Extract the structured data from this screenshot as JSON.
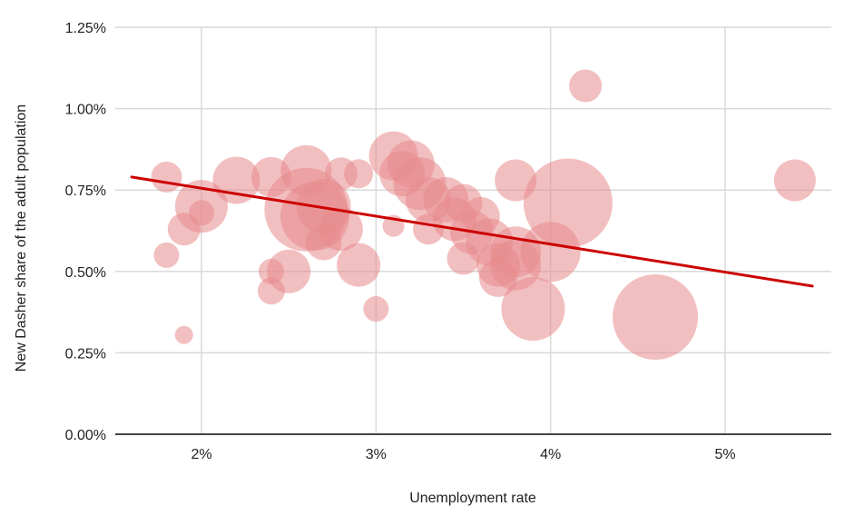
{
  "chart_data": {
    "type": "scatter",
    "subtype": "bubble",
    "title": "",
    "xlabel": "Unemployment rate",
    "ylabel": "New Dasher share of the adult population",
    "xlim": [
      1.47,
      5.6
    ],
    "ylim": [
      0,
      1.25
    ],
    "x_ticks": [
      2,
      3,
      4,
      5
    ],
    "x_tick_labels": [
      "2%",
      "3%",
      "4%",
      "5%"
    ],
    "y_ticks": [
      0,
      0.25,
      0.5,
      0.75,
      1.0,
      1.25
    ],
    "y_tick_labels": [
      "0.00%",
      "0.25%",
      "0.50%",
      "0.75%",
      "1.00%",
      "1.25%"
    ],
    "grid": true,
    "legend": "none",
    "colors": {
      "bubble": "#e88a8c",
      "bubble_opacity": 0.55,
      "trendline": "#cc0000",
      "grid": "#d9d9d9",
      "axis": "#444444"
    },
    "points": [
      {
        "x": 1.8,
        "y": 0.79,
        "size": 17
      },
      {
        "x": 1.8,
        "y": 0.55,
        "size": 14
      },
      {
        "x": 1.9,
        "y": 0.63,
        "size": 18
      },
      {
        "x": 1.9,
        "y": 0.305,
        "size": 10
      },
      {
        "x": 2.0,
        "y": 0.7,
        "size": 29
      },
      {
        "x": 2.0,
        "y": 0.68,
        "size": 14
      },
      {
        "x": 2.2,
        "y": 0.78,
        "size": 26
      },
      {
        "x": 2.4,
        "y": 0.79,
        "size": 22
      },
      {
        "x": 2.4,
        "y": 0.5,
        "size": 14
      },
      {
        "x": 2.4,
        "y": 0.44,
        "size": 15
      },
      {
        "x": 2.5,
        "y": 0.5,
        "size": 24
      },
      {
        "x": 2.6,
        "y": 0.81,
        "size": 28
      },
      {
        "x": 2.6,
        "y": 0.69,
        "size": 46
      },
      {
        "x": 2.65,
        "y": 0.67,
        "size": 38
      },
      {
        "x": 2.7,
        "y": 0.7,
        "size": 30
      },
      {
        "x": 2.7,
        "y": 0.59,
        "size": 20
      },
      {
        "x": 2.8,
        "y": 0.8,
        "size": 18
      },
      {
        "x": 2.8,
        "y": 0.63,
        "size": 24
      },
      {
        "x": 2.9,
        "y": 0.8,
        "size": 16
      },
      {
        "x": 2.9,
        "y": 0.52,
        "size": 24
      },
      {
        "x": 3.0,
        "y": 0.385,
        "size": 14
      },
      {
        "x": 3.1,
        "y": 0.855,
        "size": 27
      },
      {
        "x": 3.1,
        "y": 0.64,
        "size": 12
      },
      {
        "x": 3.15,
        "y": 0.8,
        "size": 25
      },
      {
        "x": 3.2,
        "y": 0.83,
        "size": 26
      },
      {
        "x": 3.25,
        "y": 0.77,
        "size": 29
      },
      {
        "x": 3.3,
        "y": 0.72,
        "size": 25
      },
      {
        "x": 3.3,
        "y": 0.63,
        "size": 17
      },
      {
        "x": 3.4,
        "y": 0.72,
        "size": 25
      },
      {
        "x": 3.45,
        "y": 0.66,
        "size": 24
      },
      {
        "x": 3.5,
        "y": 0.71,
        "size": 21
      },
      {
        "x": 3.55,
        "y": 0.62,
        "size": 24
      },
      {
        "x": 3.5,
        "y": 0.54,
        "size": 18
      },
      {
        "x": 3.6,
        "y": 0.67,
        "size": 21
      },
      {
        "x": 3.65,
        "y": 0.59,
        "size": 26
      },
      {
        "x": 3.7,
        "y": 0.52,
        "size": 24
      },
      {
        "x": 3.7,
        "y": 0.48,
        "size": 21
      },
      {
        "x": 3.8,
        "y": 0.78,
        "size": 23
      },
      {
        "x": 3.8,
        "y": 0.56,
        "size": 28
      },
      {
        "x": 3.8,
        "y": 0.52,
        "size": 28
      },
      {
        "x": 3.9,
        "y": 0.385,
        "size": 35
      },
      {
        "x": 4.0,
        "y": 0.56,
        "size": 33
      },
      {
        "x": 4.1,
        "y": 0.71,
        "size": 49
      },
      {
        "x": 4.2,
        "y": 1.07,
        "size": 18
      },
      {
        "x": 4.6,
        "y": 0.36,
        "size": 47
      },
      {
        "x": 5.4,
        "y": 0.78,
        "size": 23
      }
    ],
    "trendline": {
      "type": "linear",
      "x": [
        1.6,
        5.5
      ],
      "y": [
        0.79,
        0.455
      ]
    }
  }
}
